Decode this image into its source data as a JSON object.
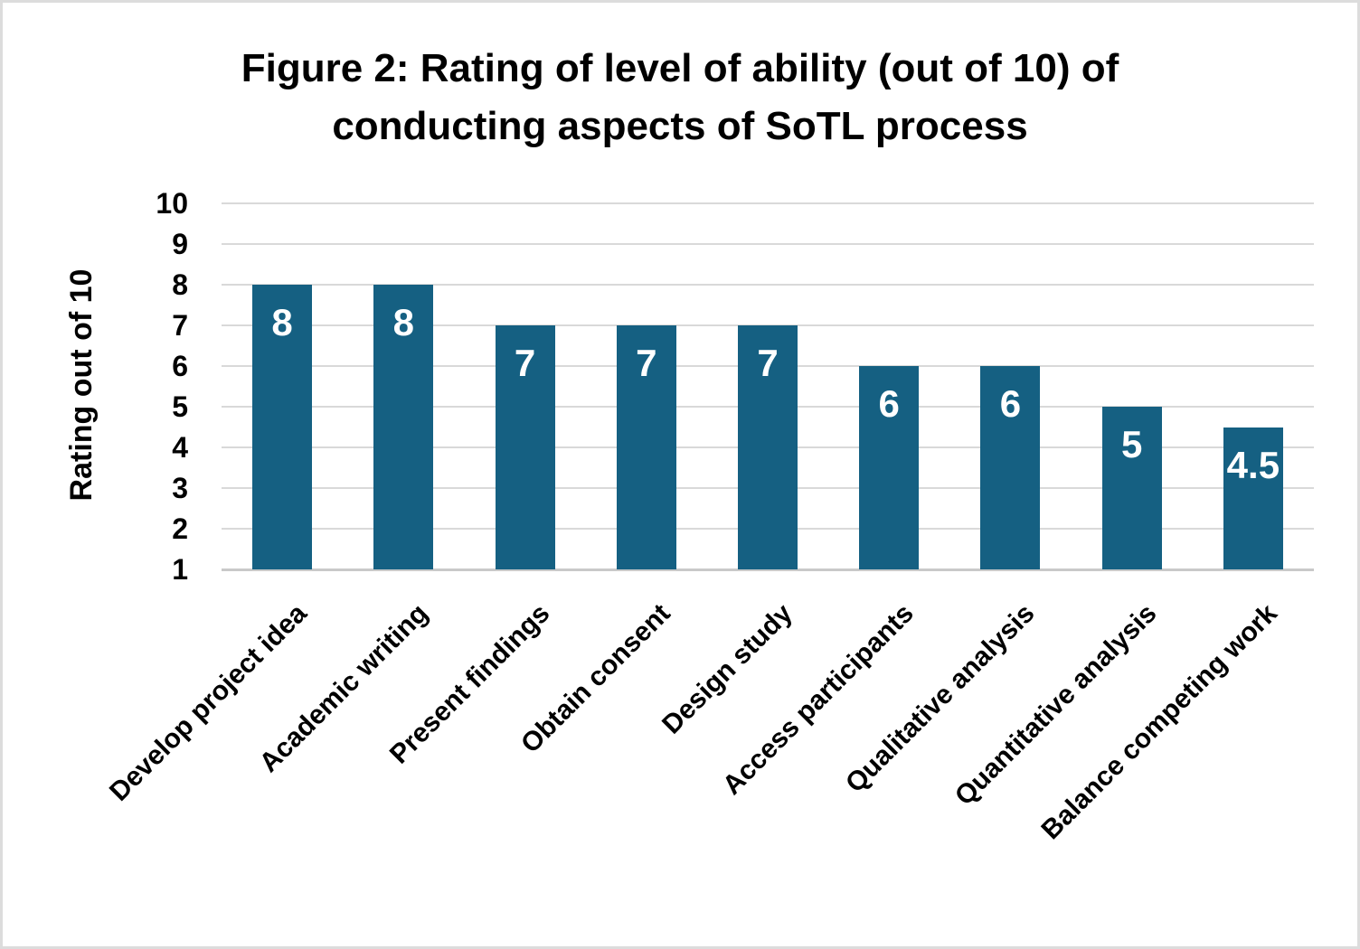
{
  "chart_data": {
    "type": "bar",
    "title": "Figure 2: Rating of level of ability (out of 10) of conducting aspects of SoTL process",
    "title_lines": [
      "Figure 2: Rating of level of ability (out of 10) of",
      "conducting aspects of SoTL process"
    ],
    "xlabel": "",
    "ylabel": "Rating out of 10",
    "ylim": [
      1,
      10
    ],
    "yticks": [
      1,
      2,
      3,
      4,
      5,
      6,
      7,
      8,
      9,
      10
    ],
    "categories": [
      "Develop project idea",
      "Academic writing",
      "Present findings",
      "Obtain consent",
      "Design study",
      "Access participants",
      "Qualitative analysis",
      "Quantitative analysis",
      "Balance competing work"
    ],
    "values": [
      8,
      8,
      7,
      7,
      7,
      6,
      6,
      5,
      4.5
    ],
    "data_labels": [
      "8",
      "8",
      "7",
      "7",
      "7",
      "6",
      "6",
      "5",
      "4.5"
    ],
    "data_label_position": "inside-end",
    "x_tick_rotation_deg": 45,
    "grid": "horizontal",
    "legend": "none",
    "colors": {
      "bar": "#156082",
      "data_label": "#ffffff",
      "gridline": "#d9d9d9",
      "axis_line": "#c9c9c9",
      "text": "#000000",
      "background": "#ffffff",
      "frame_border": "#dcdcdc"
    }
  }
}
